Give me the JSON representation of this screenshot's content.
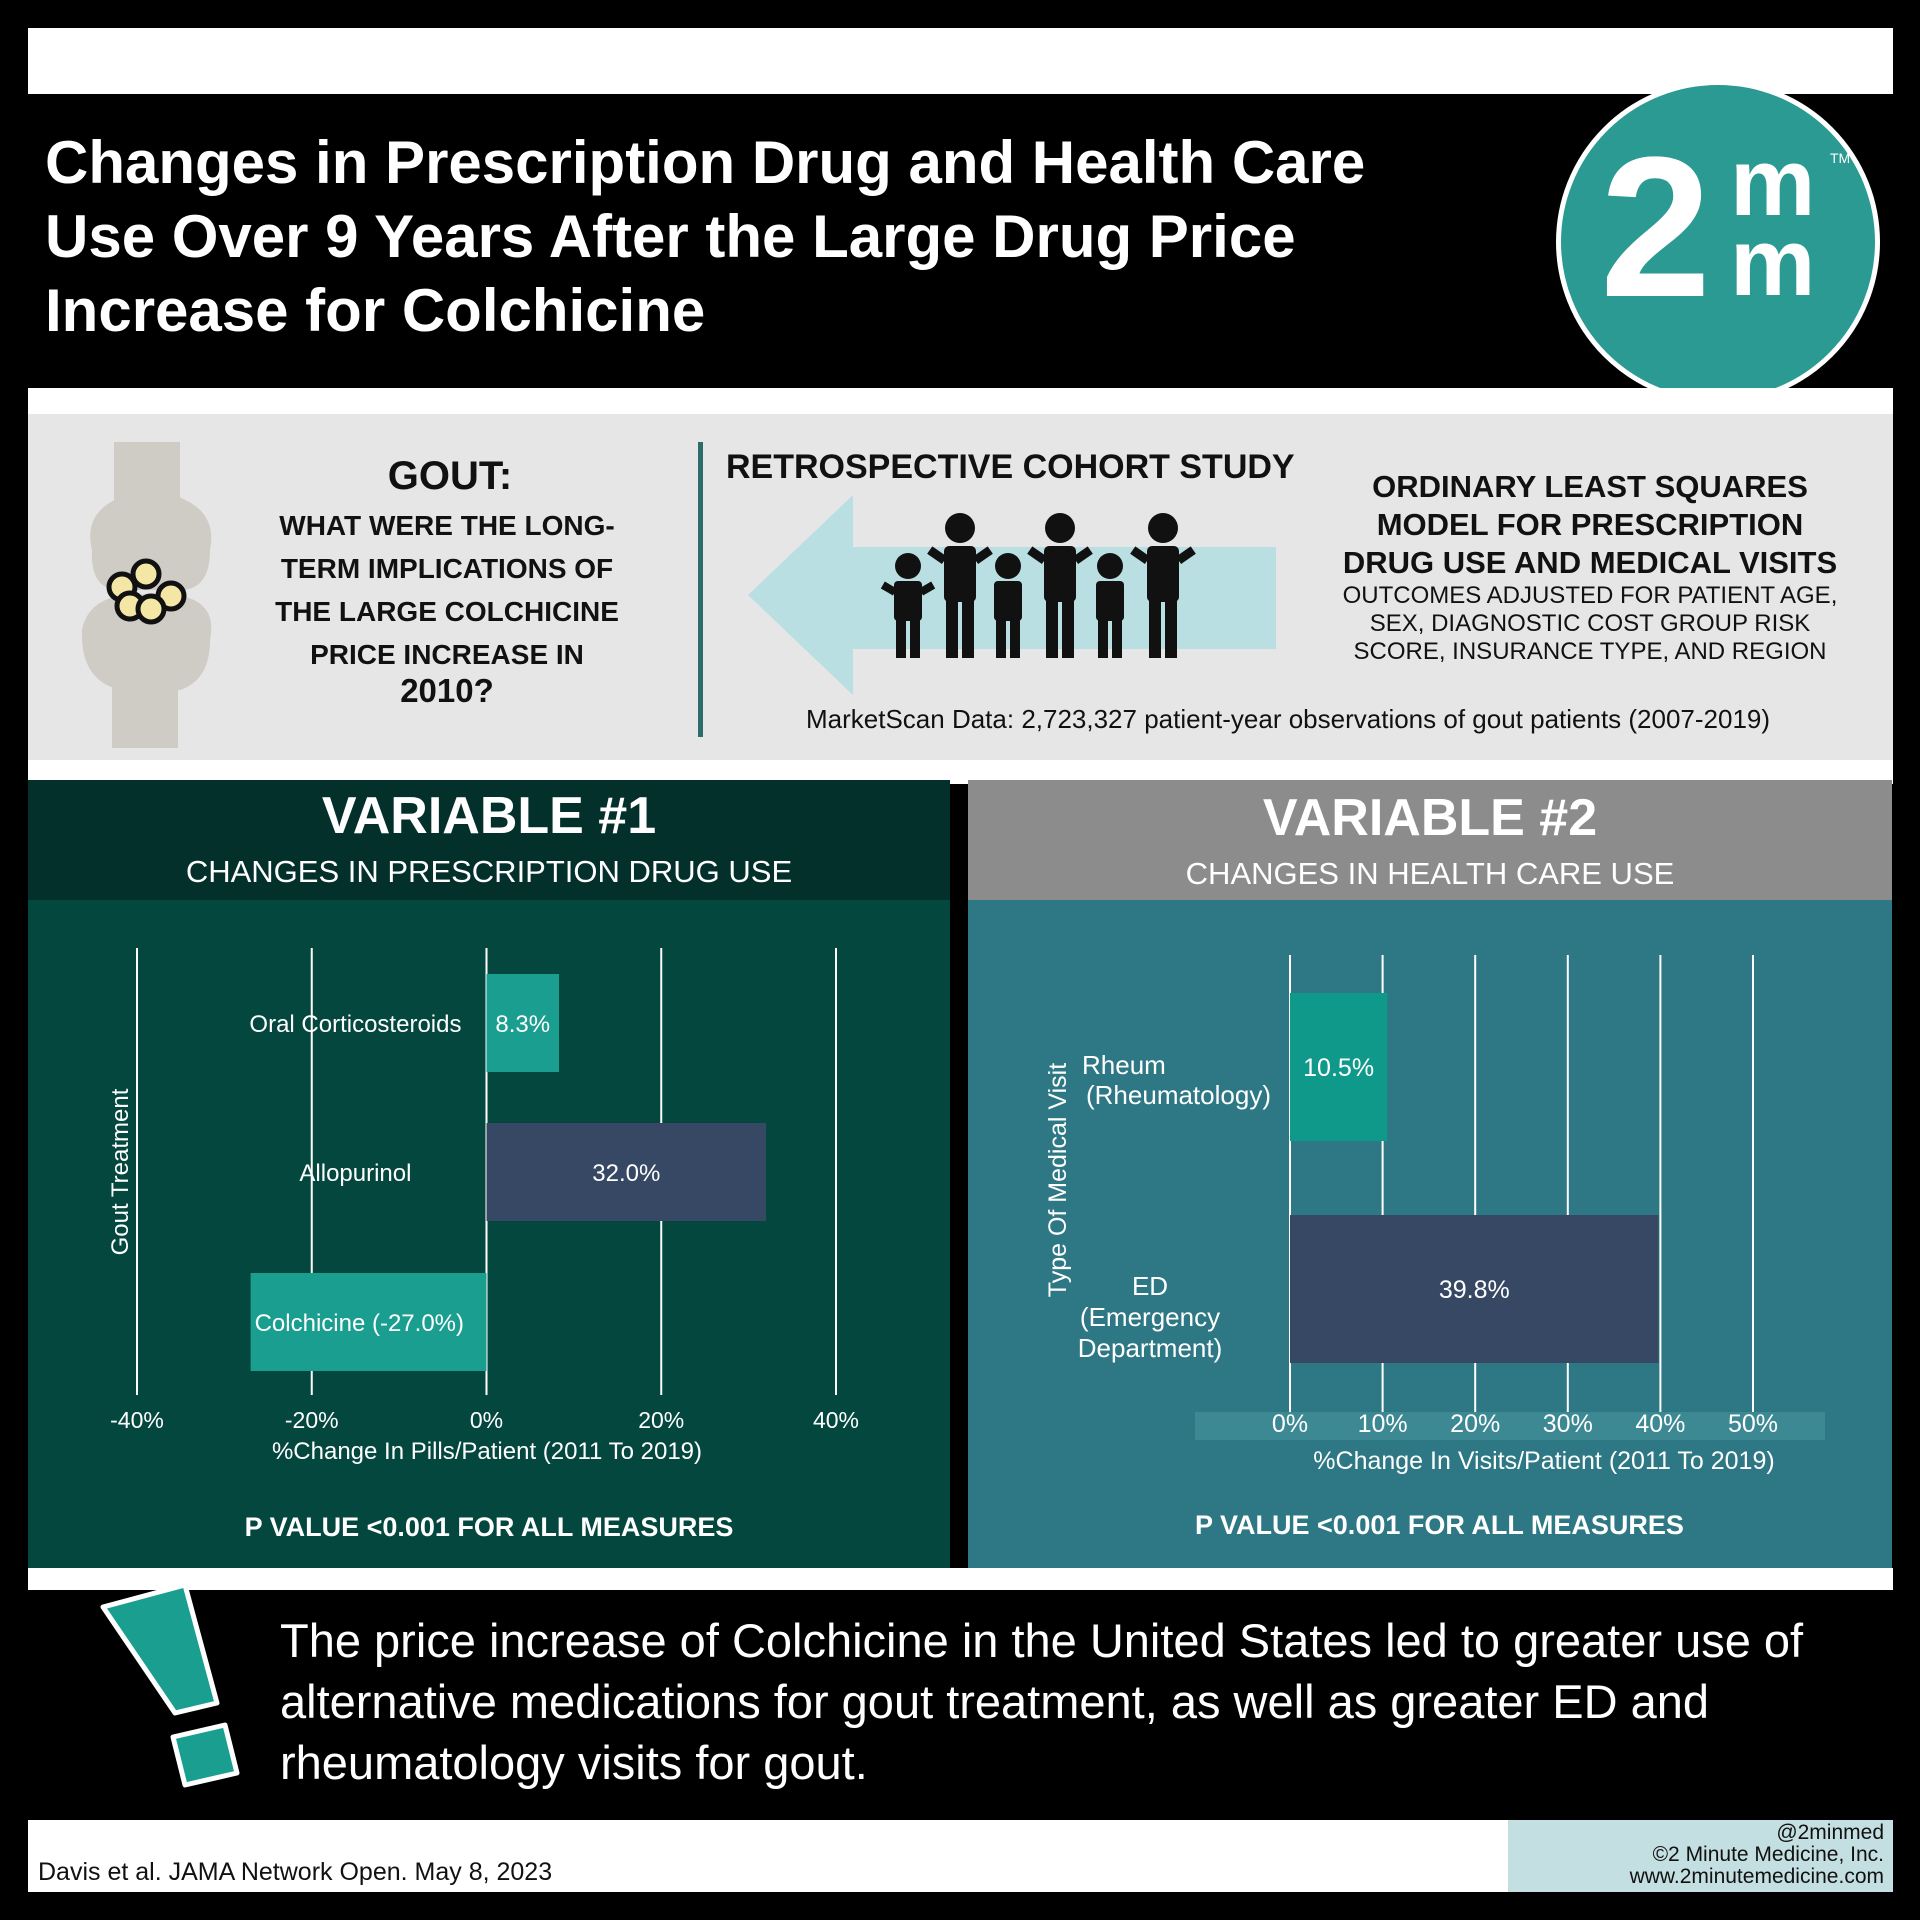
{
  "header": {
    "title": "Changes in Prescription Drug and Health Care Use Over 9 Years After the Large Drug Price Increase for Colchicine",
    "logo": {
      "digit": "2",
      "letter_top": "m",
      "letter_bottom": "m",
      "tm": "TM"
    }
  },
  "study": {
    "question_heading": "GOUT:",
    "question_body": "WHAT WERE THE LONG-TERM IMPLICATIONS OF THE LARGE COLCHICINE PRICE INCREASE IN",
    "question_year": "2010?",
    "study_type": "RETROSPECTIVE COHORT STUDY",
    "model_heading": "ORDINARY LEAST SQUARES MODEL FOR PRESCRIPTION DRUG USE AND MEDICAL VISITS",
    "model_body": "OUTCOMES ADJUSTED FOR PATIENT AGE, SEX, DIAGNOSTIC COST GROUP RISK SCORE, INSURANCE TYPE, AND REGION",
    "data_note": "MarketScan Data: 2,723,327 patient-year observations of gout patients (2007-2019)",
    "icons": [
      "joint-icon",
      "arrow-icon",
      "people-icon"
    ]
  },
  "variable1": {
    "title": "VARIABLE #1",
    "subtitle": "CHANGES IN PRESCRIPTION DRUG USE",
    "p_value": "P VALUE <0.001 FOR ALL MEASURES"
  },
  "variable2": {
    "title": "VARIABLE #2",
    "subtitle": "CHANGES IN HEALTH CARE USE",
    "p_value": "P VALUE <0.001 FOR ALL MEASURES"
  },
  "chart_data": [
    {
      "type": "bar",
      "orientation": "horizontal",
      "xlabel": "%Change In Pills/Patient (2011 To 2019)",
      "ylabel": "Gout Treatment",
      "xlim": [
        -40,
        40
      ],
      "ticks": [
        -40,
        -20,
        0,
        20,
        40
      ],
      "tick_labels": [
        "-40%",
        "-20%",
        "0%",
        "20%",
        "40%"
      ],
      "grid": true,
      "categories": [
        "Oral Corticosteroids",
        "Allopurinol",
        "Colchicine"
      ],
      "values": [
        8.3,
        32.0,
        -27.0
      ],
      "data_labels": [
        "8.3%",
        "32.0%",
        "Colchicine (-27.0%)"
      ],
      "category_labels": [
        "Oral Corticosteroids",
        "Allopurinol",
        ""
      ],
      "colors": [
        "#1a9e8f",
        "#364864",
        "#1a9e8f"
      ]
    },
    {
      "type": "bar",
      "orientation": "horizontal",
      "xlabel": "%Change In Visits/Patient (2011 To 2019)",
      "ylabel": "Type Of Medical Visit",
      "xlim": [
        0,
        50
      ],
      "ticks": [
        0,
        10,
        20,
        30,
        40,
        50
      ],
      "tick_labels": [
        "0%",
        "10%",
        "20%",
        "30%",
        "40%",
        "50%"
      ],
      "grid": true,
      "categories": [
        "Rheum (Rheumatology)",
        "ED (Emergency Department)"
      ],
      "category_label_lines": [
        [
          "Rheum",
          "(Rheumatology)"
        ],
        [
          "ED",
          "(Emergency",
          "Department)"
        ]
      ],
      "values": [
        10.5,
        39.8
      ],
      "data_labels": [
        "10.5%",
        "39.8%"
      ],
      "colors": [
        "#0f998b",
        "#364864"
      ]
    }
  ],
  "conclusion": {
    "text": "The price increase of Colchicine in the United States led to greater use of alternative medications for gout treatment, as well as greater ED and rheumatology visits for gout."
  },
  "footer": {
    "citation": "Davis et al. JAMA Network Open. May 8, 2023",
    "credit_handle": "@2minmed",
    "credit_company": "©2 Minute Medicine, Inc.",
    "credit_url": "www.2minutemedicine.com"
  },
  "colors": {
    "teal_logo": "#2a9a92",
    "panel1_dark": "#04302c",
    "panel1": "#04473f",
    "panel2_head": "#8c8c8c",
    "panel2": "#2d7884",
    "bar_teal": "#1a9e8f",
    "bar_navy": "#364864",
    "arrow": "#b9dfe3"
  }
}
